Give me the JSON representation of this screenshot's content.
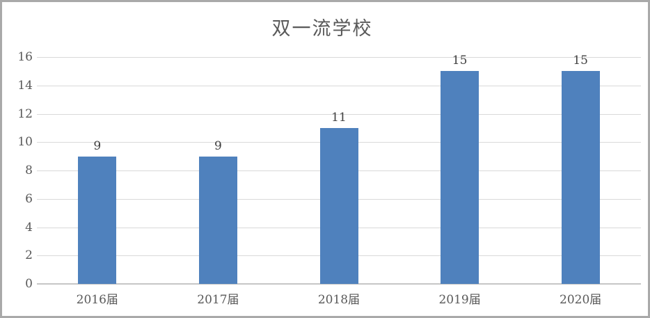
{
  "chart_data": {
    "type": "bar",
    "title": "双一流学校",
    "categories": [
      "2016届",
      "2017届",
      "2018届",
      "2019届",
      "2020届"
    ],
    "values": [
      9,
      9,
      11,
      15,
      15
    ],
    "xlabel": "",
    "ylabel": "",
    "ylim": [
      0,
      16
    ],
    "yticks": [
      0,
      2,
      4,
      6,
      8,
      10,
      12,
      14,
      16
    ],
    "grid": "horizontal",
    "legend_position": "none",
    "data_labels": true
  },
  "colors": {
    "bar": "#4f81bd",
    "gridline": "#d9d9d9",
    "axis_line": "#c6c6c6",
    "title_text": "#595959",
    "tick_text": "#595959",
    "data_label_text": "#404040",
    "frame_border": "#a9a9a9",
    "background": "#ffffff"
  }
}
